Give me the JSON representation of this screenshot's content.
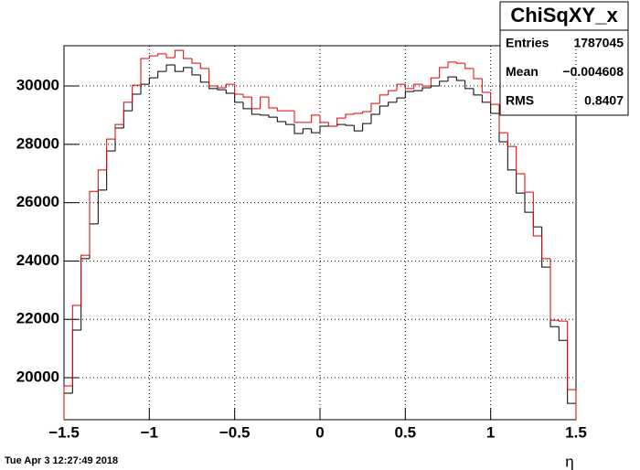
{
  "chart_data": {
    "type": "histogram",
    "stats": {
      "title": "ChiSqXY_x",
      "rows": [
        [
          "Entries",
          "1787045"
        ],
        [
          "Mean",
          "−0.004608"
        ],
        [
          "RMS",
          "0.8407"
        ]
      ]
    },
    "x_label": "η",
    "timestamp": "Tue Apr  3 12:27:49 2018",
    "bins": [
      -1.5,
      -1.45,
      -1.4,
      -1.35,
      -1.3,
      -1.25,
      -1.2,
      -1.15,
      -1.1,
      -1.05,
      -1,
      -0.95,
      -0.9,
      -0.85,
      -0.8,
      -0.75,
      -0.7,
      -0.65,
      -0.6,
      -0.55,
      -0.5,
      -0.45,
      -0.4,
      -0.35,
      -0.3,
      -0.25,
      -0.2,
      -0.15,
      -0.1,
      -0.05,
      0,
      0.05,
      0.1,
      0.15,
      0.2,
      0.25,
      0.3,
      0.35,
      0.4,
      0.45,
      0.5,
      0.55,
      0.6,
      0.65,
      0.7,
      0.75,
      0.8,
      0.85,
      0.9,
      0.95,
      1,
      1.05,
      1.1,
      1.15,
      1.2,
      1.25,
      1.3,
      1.35,
      1.4,
      1.45,
      1.5
    ],
    "series": [
      {
        "color": "#000000",
        "values": [
          19470,
          21630,
          24080,
          25270,
          26430,
          27770,
          28560,
          29150,
          29720,
          30060,
          30280,
          30500,
          30720,
          30500,
          30630,
          30380,
          30130,
          29910,
          29870,
          29750,
          29440,
          29220,
          29030,
          29000,
          28930,
          28780,
          28680,
          28370,
          28530,
          28400,
          28620,
          28620,
          28680,
          28650,
          28460,
          28710,
          29030,
          29310,
          29440,
          29590,
          29810,
          29840,
          29940,
          30000,
          30160,
          30310,
          30190,
          29910,
          29690,
          29440,
          29060,
          28090,
          27120,
          26330,
          25670,
          25170,
          23790,
          21750,
          21280,
          19120
        ]
      },
      {
        "color": "#e00000",
        "values": [
          19720,
          22480,
          24200,
          26390,
          27120,
          28180,
          28680,
          29440,
          30030,
          30940,
          31030,
          31100,
          30970,
          31220,
          30940,
          30780,
          30600,
          30000,
          29940,
          30060,
          29720,
          29620,
          29220,
          29620,
          29250,
          29150,
          29150,
          28750,
          28750,
          29000,
          28750,
          28620,
          28900,
          29030,
          29060,
          29120,
          29400,
          29690,
          29840,
          30060,
          29910,
          30060,
          30000,
          30280,
          30630,
          30820,
          30780,
          30600,
          30250,
          29780,
          29370,
          28400,
          27930,
          26990,
          26360,
          24860,
          24080,
          21970,
          21940,
          19590
        ]
      }
    ],
    "xlim": [
      -1.5,
      1.5
    ],
    "ylim": [
      18560,
      31380
    ],
    "xticks": [
      {
        "value": -1.5,
        "label": "−1.5"
      },
      {
        "value": -1,
        "label": "−1"
      },
      {
        "value": -0.5,
        "label": "−0.5"
      },
      0,
      0.5,
      1,
      1.5
    ],
    "yticks": [
      20000,
      22000,
      24000,
      26000,
      28000,
      30000
    ],
    "grid": true
  }
}
